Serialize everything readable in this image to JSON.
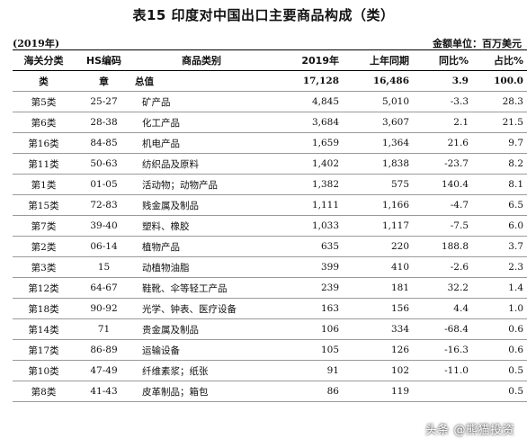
{
  "title": "表15 印度对中国出口主要商品构成（类）",
  "year_note": "(2019年)",
  "unit_note": "金额单位：百万美元",
  "columns": [
    "海关分类",
    "HS编码",
    "商品类别",
    "2019年",
    "上年同期",
    "同比%",
    "占比%"
  ],
  "total": {
    "cat": "类",
    "hs": "章",
    "name": "总值",
    "v2019": "17,128",
    "prev": "16,486",
    "yoy": "3.9",
    "share": "100.0"
  },
  "rows": [
    {
      "cat": "第5类",
      "hs": "25-27",
      "name": "矿产品",
      "v2019": "4,845",
      "prev": "5,010",
      "yoy": "-3.3",
      "share": "28.3"
    },
    {
      "cat": "第6类",
      "hs": "28-38",
      "name": "化工产品",
      "v2019": "3,684",
      "prev": "3,607",
      "yoy": "2.1",
      "share": "21.5"
    },
    {
      "cat": "第16类",
      "hs": "84-85",
      "name": "机电产品",
      "v2019": "1,659",
      "prev": "1,364",
      "yoy": "21.6",
      "share": "9.7"
    },
    {
      "cat": "第11类",
      "hs": "50-63",
      "name": "纺织品及原料",
      "v2019": "1,402",
      "prev": "1,838",
      "yoy": "-23.7",
      "share": "8.2"
    },
    {
      "cat": "第1类",
      "hs": "01-05",
      "name": "活动物；动物产品",
      "v2019": "1,382",
      "prev": "575",
      "yoy": "140.4",
      "share": "8.1"
    },
    {
      "cat": "第15类",
      "hs": "72-83",
      "name": "贱金属及制品",
      "v2019": "1,111",
      "prev": "1,166",
      "yoy": "-4.7",
      "share": "6.5"
    },
    {
      "cat": "第7类",
      "hs": "39-40",
      "name": "塑料、橡胶",
      "v2019": "1,033",
      "prev": "1,117",
      "yoy": "-7.5",
      "share": "6.0"
    },
    {
      "cat": "第2类",
      "hs": "06-14",
      "name": "植物产品",
      "v2019": "635",
      "prev": "220",
      "yoy": "188.8",
      "share": "3.7"
    },
    {
      "cat": "第3类",
      "hs": "15",
      "name": "动植物油脂",
      "v2019": "399",
      "prev": "410",
      "yoy": "-2.6",
      "share": "2.3"
    },
    {
      "cat": "第12类",
      "hs": "64-67",
      "name": "鞋靴、伞等轻工产品",
      "v2019": "239",
      "prev": "181",
      "yoy": "32.2",
      "share": "1.4"
    },
    {
      "cat": "第18类",
      "hs": "90-92",
      "name": "光学、钟表、医疗设备",
      "v2019": "163",
      "prev": "156",
      "yoy": "4.4",
      "share": "1.0"
    },
    {
      "cat": "第14类",
      "hs": "71",
      "name": "贵金属及制品",
      "v2019": "106",
      "prev": "334",
      "yoy": "-68.4",
      "share": "0.6"
    },
    {
      "cat": "第17类",
      "hs": "86-89",
      "name": "运输设备",
      "v2019": "105",
      "prev": "126",
      "yoy": "-16.3",
      "share": "0.6"
    },
    {
      "cat": "第10类",
      "hs": "47-49",
      "name": "纤维素浆；纸张",
      "v2019": "91",
      "prev": "102",
      "yoy": "-11.0",
      "share": "0.5"
    },
    {
      "cat": "第8类",
      "hs": "41-43",
      "name": "皮革制品；箱包",
      "v2019": "86",
      "prev": "119",
      "yoy": "",
      "share": "0.5"
    }
  ],
  "watermark": "头条 @熊猫投资"
}
